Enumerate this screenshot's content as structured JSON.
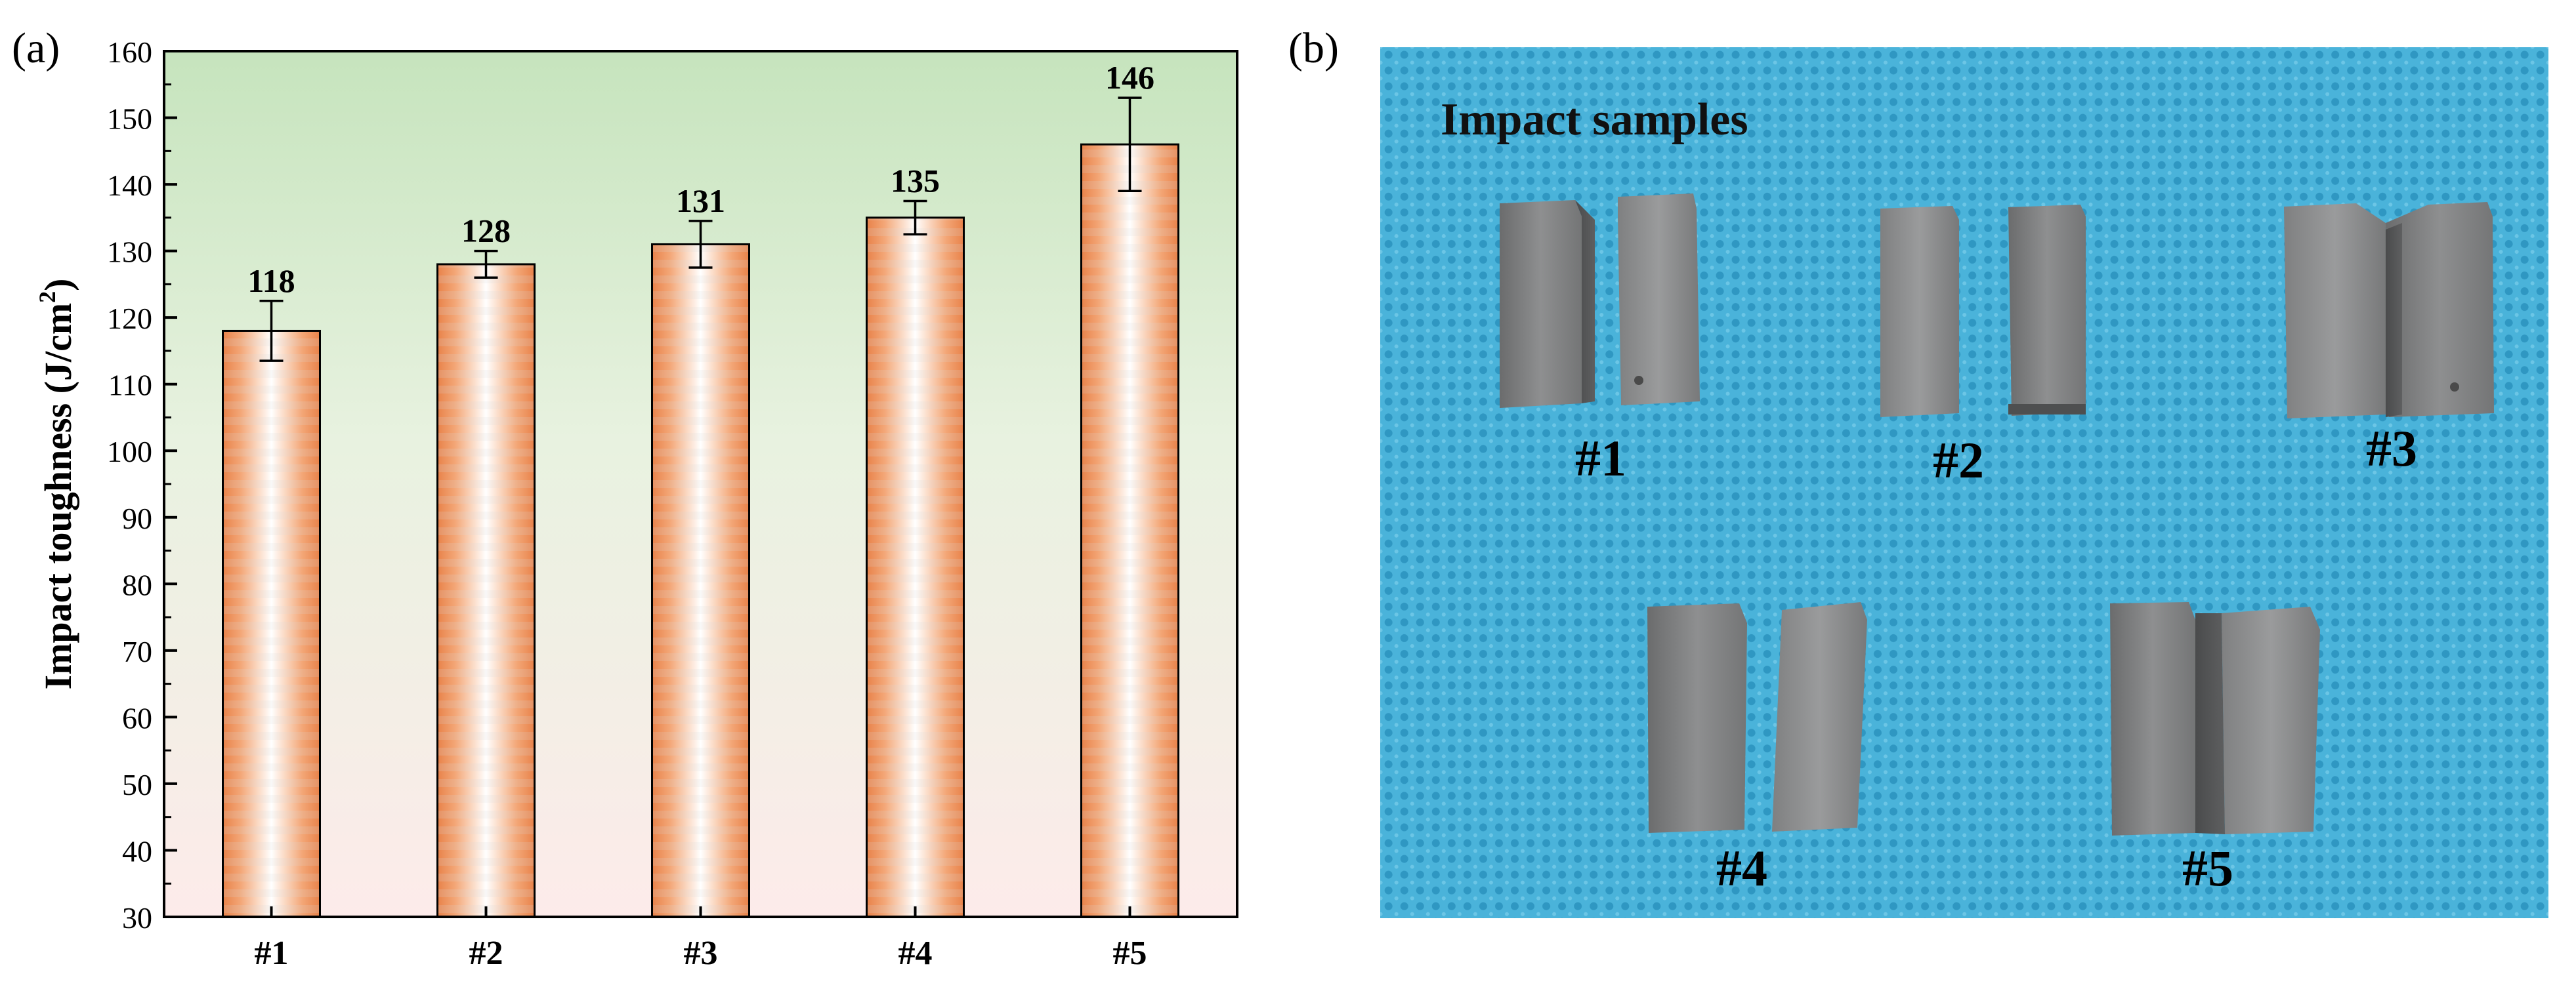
{
  "panel_a_label": "(a)",
  "panel_b_label": "(b)",
  "chart_data": {
    "type": "bar",
    "title": "",
    "categories": [
      "#1",
      "#2",
      "#3",
      "#4",
      "#5"
    ],
    "values": [
      118,
      128,
      131,
      135,
      146
    ],
    "value_labels": [
      "118",
      "128",
      "131",
      "135",
      "146"
    ],
    "errors": [
      4.5,
      2.0,
      3.5,
      2.5,
      7.0
    ],
    "xlabel": "",
    "ylabel": "Impact toughness (J/cm",
    "ylabel_sup": "2",
    "ylabel_close": ")",
    "ylim": [
      30,
      160
    ],
    "yticks": [
      30,
      40,
      50,
      60,
      70,
      80,
      90,
      100,
      110,
      120,
      130,
      140,
      150,
      160
    ],
    "grid": false,
    "colors": {
      "bar_edge": "#e8834d",
      "bar_center": "#ffffff",
      "bg_top": "#cde6c4",
      "bg_bottom": "#fbecea"
    }
  },
  "photo": {
    "caption": "Impact samples",
    "labels": [
      "#1",
      "#2",
      "#3",
      "#4",
      "#5"
    ],
    "colors": {
      "cloth": "#49b2d8",
      "cloth_dark": "#2d93bd",
      "steel": "#7c7d7e"
    }
  }
}
